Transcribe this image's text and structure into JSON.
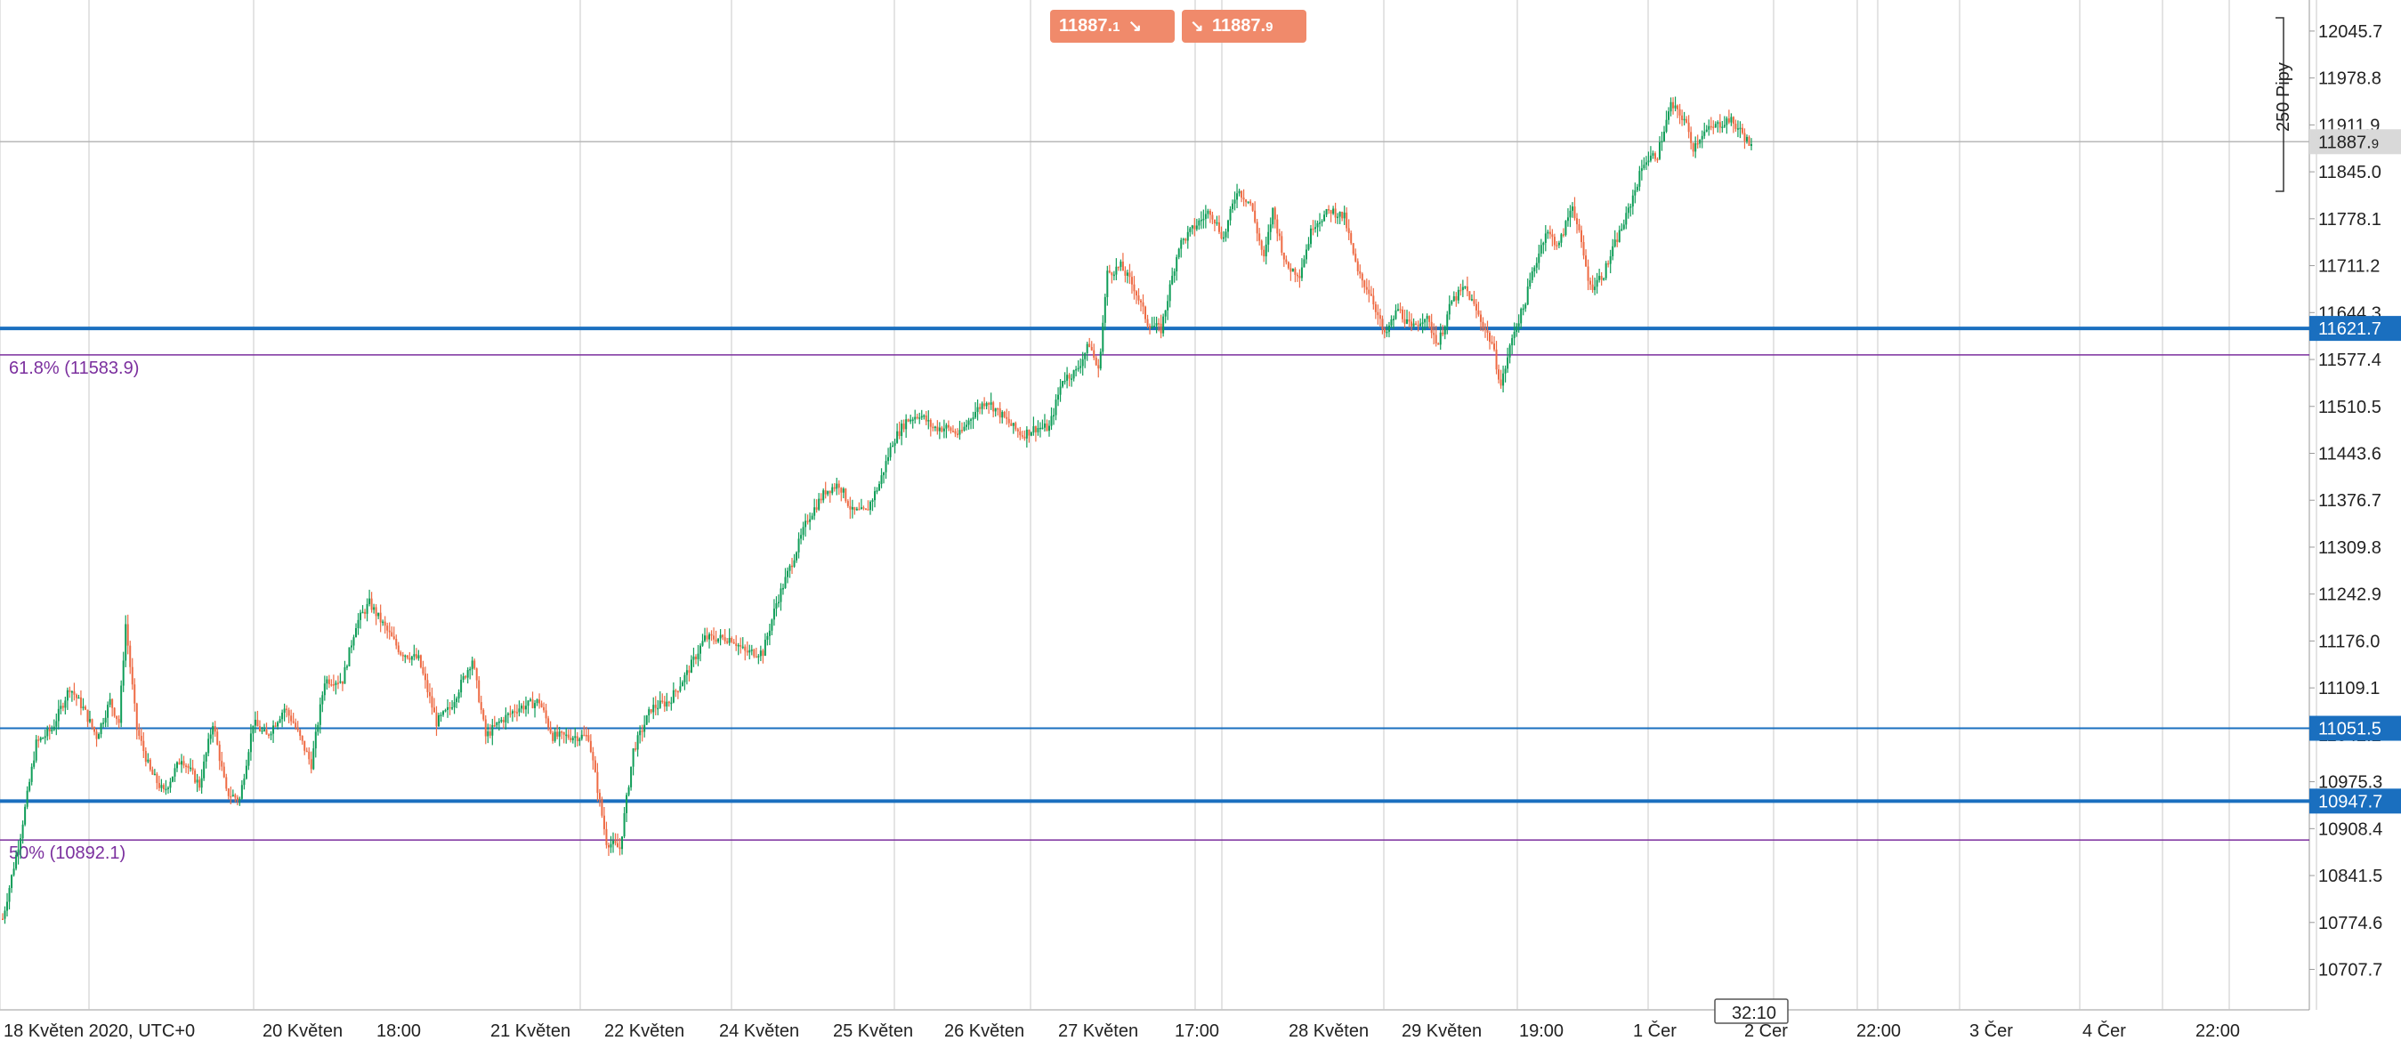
{
  "colors": {
    "up": "#0f9d58",
    "down": "#ee6a43",
    "hline": "#1a6fbf",
    "fib": "#7b2f9e",
    "grid": "#c8c8c8",
    "axis_text": "#222222",
    "trade_btn": "#f08a6b"
  },
  "trade": {
    "sell_price": "11887.",
    "sell_frac": "1",
    "buy_price": "11887.",
    "buy_frac": "9",
    "sell_icon": "arrow-down-right-icon",
    "buy_icon": "arrow-down-right-icon"
  },
  "measure_label": "250 Pipy",
  "countdown": "32:10",
  "chart_data": {
    "type": "candlestick",
    "ylim": [
      10650,
      12090
    ],
    "yticks": [
      "12045.7",
      "11978.8",
      "11911.9",
      "11845.0",
      "11778.1",
      "11711.2",
      "11644.3",
      "11577.4",
      "11510.5",
      "11443.6",
      "11376.7",
      "11309.8",
      "11242.9",
      "11176.0",
      "11109.1",
      "11042.2",
      "10975.3",
      "10908.4",
      "10841.5",
      "10774.6",
      "10707.7"
    ],
    "xticks": [
      "18 Květen 2020, UTC+0",
      "20 Květen",
      "18:00",
      "21 Květen",
      "22 Květen",
      "24 Květen",
      "25 Květen",
      "26 Květen",
      "27 Květen",
      "17:00",
      "28 Květen",
      "29 Květen",
      "19:00",
      "1 Čer",
      "2 Čer",
      "22:00",
      "3 Čer",
      "4 Čer",
      "22:00"
    ],
    "current_price": {
      "value": 11887.9,
      "label": "11887.",
      "label_small": "9"
    },
    "horizontal_lines": [
      {
        "value": 11621.7,
        "label": "11621.7",
        "thick": true
      },
      {
        "value": 11051.5,
        "label": "11051.5",
        "thick": false
      },
      {
        "value": 10947.7,
        "label": "10947.7",
        "thick": true
      }
    ],
    "fib_levels": [
      {
        "value": 11583.9,
        "label": "61.8% (11583.9)"
      },
      {
        "value": 10892.1,
        "label": "50% (10892.1)"
      }
    ],
    "anchors": [
      [
        0,
        10780
      ],
      [
        8,
        10900
      ],
      [
        15,
        11030
      ],
      [
        22,
        11050
      ],
      [
        30,
        11110
      ],
      [
        36,
        11080
      ],
      [
        42,
        11040
      ],
      [
        48,
        11090
      ],
      [
        52,
        11060
      ],
      [
        55,
        11200
      ],
      [
        60,
        11050
      ],
      [
        66,
        10990
      ],
      [
        72,
        10960
      ],
      [
        80,
        11010
      ],
      [
        88,
        10970
      ],
      [
        94,
        11060
      ],
      [
        100,
        10960
      ],
      [
        106,
        10950
      ],
      [
        112,
        11060
      ],
      [
        118,
        11040
      ],
      [
        126,
        11080
      ],
      [
        130,
        11060
      ],
      [
        138,
        11000
      ],
      [
        144,
        11120
      ],
      [
        152,
        11120
      ],
      [
        158,
        11200
      ],
      [
        164,
        11230
      ],
      [
        170,
        11200
      ],
      [
        178,
        11160
      ],
      [
        186,
        11150
      ],
      [
        194,
        11060
      ],
      [
        200,
        11080
      ],
      [
        210,
        11150
      ],
      [
        216,
        11040
      ],
      [
        222,
        11060
      ],
      [
        230,
        11080
      ],
      [
        240,
        11090
      ],
      [
        246,
        11040
      ],
      [
        256,
        11040
      ],
      [
        262,
        11040
      ],
      [
        270,
        10890
      ],
      [
        276,
        10880
      ],
      [
        282,
        11020
      ],
      [
        290,
        11080
      ],
      [
        298,
        11090
      ],
      [
        306,
        11130
      ],
      [
        314,
        11180
      ],
      [
        320,
        11180
      ],
      [
        326,
        11180
      ],
      [
        332,
        11160
      ],
      [
        340,
        11160
      ],
      [
        346,
        11230
      ],
      [
        352,
        11280
      ],
      [
        360,
        11350
      ],
      [
        368,
        11390
      ],
      [
        374,
        11400
      ],
      [
        380,
        11360
      ],
      [
        386,
        11360
      ],
      [
        392,
        11400
      ],
      [
        398,
        11460
      ],
      [
        404,
        11490
      ],
      [
        410,
        11500
      ],
      [
        416,
        11480
      ],
      [
        422,
        11480
      ],
      [
        428,
        11470
      ],
      [
        434,
        11500
      ],
      [
        440,
        11520
      ],
      [
        446,
        11500
      ],
      [
        452,
        11480
      ],
      [
        456,
        11470
      ],
      [
        462,
        11480
      ],
      [
        468,
        11480
      ],
      [
        474,
        11550
      ],
      [
        480,
        11560
      ],
      [
        486,
        11600
      ],
      [
        490,
        11560
      ],
      [
        494,
        11700
      ],
      [
        500,
        11710
      ],
      [
        506,
        11680
      ],
      [
        512,
        11630
      ],
      [
        518,
        11620
      ],
      [
        526,
        11740
      ],
      [
        534,
        11770
      ],
      [
        540,
        11790
      ],
      [
        546,
        11750
      ],
      [
        552,
        11820
      ],
      [
        558,
        11800
      ],
      [
        564,
        11720
      ],
      [
        568,
        11790
      ],
      [
        574,
        11710
      ],
      [
        580,
        11700
      ],
      [
        586,
        11770
      ],
      [
        594,
        11790
      ],
      [
        600,
        11780
      ],
      [
        606,
        11700
      ],
      [
        612,
        11670
      ],
      [
        618,
        11610
      ],
      [
        624,
        11650
      ],
      [
        630,
        11620
      ],
      [
        636,
        11640
      ],
      [
        642,
        11600
      ],
      [
        648,
        11660
      ],
      [
        654,
        11680
      ],
      [
        660,
        11640
      ],
      [
        666,
        11600
      ],
      [
        670,
        11540
      ],
      [
        676,
        11620
      ],
      [
        680,
        11650
      ],
      [
        684,
        11700
      ],
      [
        690,
        11760
      ],
      [
        696,
        11740
      ],
      [
        702,
        11800
      ],
      [
        710,
        11680
      ],
      [
        716,
        11700
      ],
      [
        722,
        11750
      ],
      [
        726,
        11780
      ],
      [
        734,
        11860
      ],
      [
        740,
        11870
      ],
      [
        746,
        11940
      ],
      [
        752,
        11920
      ],
      [
        756,
        11880
      ],
      [
        760,
        11900
      ],
      [
        766,
        11910
      ],
      [
        772,
        11920
      ],
      [
        778,
        11900
      ],
      [
        782,
        11880
      ]
    ]
  }
}
